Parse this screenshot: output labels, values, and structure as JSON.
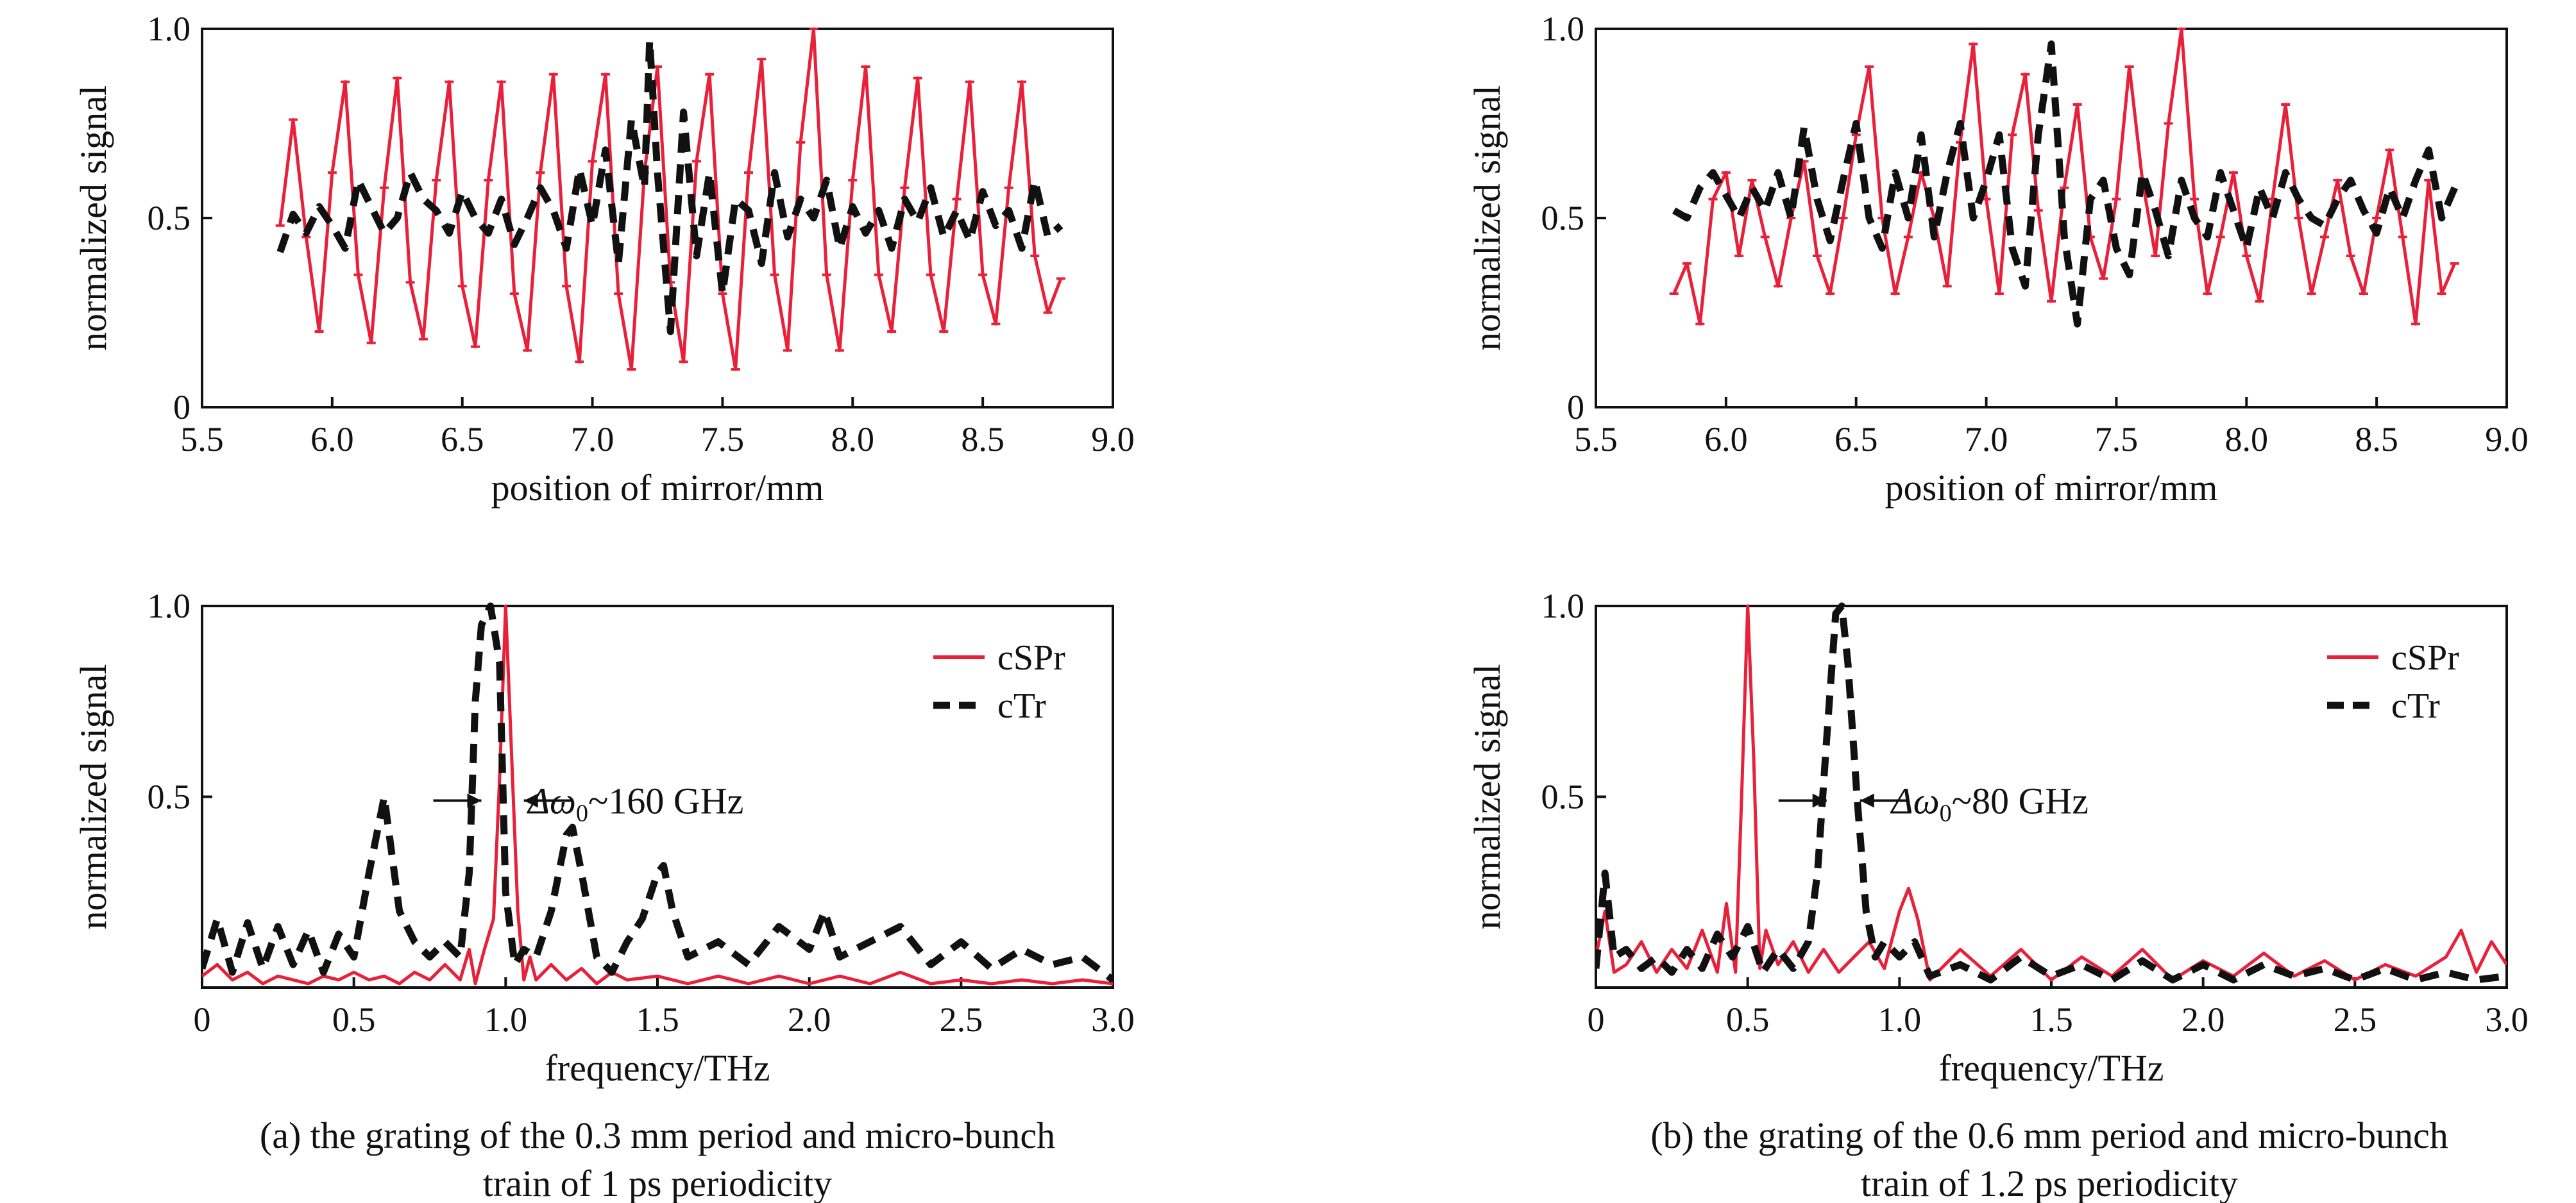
{
  "colors": {
    "cSPr": "#e8213a",
    "cTr": "#111111"
  },
  "chart_data": [
    {
      "id": "a_top",
      "type": "line",
      "xlabel": "position of mirror/mm",
      "ylabel": "normalized signal",
      "xlim": [
        5.5,
        9.0
      ],
      "ylim": [
        0,
        1.0
      ],
      "xticks": [
        "5.5",
        "6.0",
        "6.5",
        "7.0",
        "7.5",
        "8.0",
        "8.5",
        "9.0"
      ],
      "yticks": [
        "0",
        "0.5",
        "1.0"
      ],
      "series": [
        {
          "key": "cSPr",
          "style": "solid-markers",
          "x": [
            5.8,
            5.85,
            5.9,
            5.95,
            6.0,
            6.05,
            6.1,
            6.15,
            6.2,
            6.25,
            6.3,
            6.35,
            6.4,
            6.45,
            6.5,
            6.55,
            6.6,
            6.65,
            6.7,
            6.75,
            6.8,
            6.85,
            6.9,
            6.95,
            7.0,
            7.05,
            7.1,
            7.15,
            7.2,
            7.25,
            7.3,
            7.35,
            7.4,
            7.45,
            7.5,
            7.55,
            7.6,
            7.65,
            7.7,
            7.75,
            7.8,
            7.85,
            7.9,
            7.95,
            8.0,
            8.05,
            8.1,
            8.15,
            8.2,
            8.25,
            8.3,
            8.35,
            8.4,
            8.45,
            8.5,
            8.55,
            8.6,
            8.65,
            8.7,
            8.75,
            8.8
          ],
          "y": [
            0.48,
            0.76,
            0.45,
            0.2,
            0.62,
            0.86,
            0.35,
            0.17,
            0.58,
            0.87,
            0.33,
            0.18,
            0.6,
            0.86,
            0.32,
            0.16,
            0.6,
            0.86,
            0.3,
            0.15,
            0.62,
            0.88,
            0.32,
            0.12,
            0.65,
            0.88,
            0.3,
            0.1,
            0.62,
            0.9,
            0.33,
            0.12,
            0.65,
            0.88,
            0.3,
            0.1,
            0.62,
            0.92,
            0.35,
            0.15,
            0.7,
            1.0,
            0.35,
            0.15,
            0.6,
            0.9,
            0.35,
            0.2,
            0.58,
            0.87,
            0.35,
            0.2,
            0.55,
            0.86,
            0.35,
            0.22,
            0.58,
            0.86,
            0.4,
            0.25,
            0.34
          ]
        },
        {
          "key": "cTr",
          "style": "dashed",
          "x": [
            5.8,
            5.85,
            5.9,
            5.95,
            6.0,
            6.05,
            6.1,
            6.15,
            6.2,
            6.25,
            6.3,
            6.35,
            6.4,
            6.45,
            6.5,
            6.55,
            6.6,
            6.65,
            6.7,
            6.75,
            6.8,
            6.85,
            6.9,
            6.95,
            7.0,
            7.05,
            7.1,
            7.15,
            7.2,
            7.22,
            7.25,
            7.3,
            7.35,
            7.4,
            7.45,
            7.5,
            7.55,
            7.6,
            7.65,
            7.7,
            7.75,
            7.8,
            7.85,
            7.9,
            7.95,
            8.0,
            8.05,
            8.1,
            8.15,
            8.2,
            8.25,
            8.3,
            8.35,
            8.4,
            8.45,
            8.5,
            8.55,
            8.6,
            8.65,
            8.7,
            8.75,
            8.8
          ],
          "y": [
            0.41,
            0.51,
            0.46,
            0.53,
            0.48,
            0.42,
            0.6,
            0.53,
            0.46,
            0.5,
            0.62,
            0.55,
            0.52,
            0.46,
            0.57,
            0.5,
            0.46,
            0.55,
            0.43,
            0.5,
            0.58,
            0.52,
            0.42,
            0.63,
            0.48,
            0.68,
            0.38,
            0.76,
            0.58,
            0.97,
            0.62,
            0.2,
            0.78,
            0.4,
            0.62,
            0.3,
            0.55,
            0.52,
            0.38,
            0.62,
            0.45,
            0.55,
            0.5,
            0.6,
            0.42,
            0.53,
            0.46,
            0.52,
            0.42,
            0.55,
            0.49,
            0.58,
            0.45,
            0.52,
            0.44,
            0.57,
            0.48,
            0.52,
            0.42,
            0.6,
            0.45,
            0.48
          ]
        }
      ]
    },
    {
      "id": "b_top",
      "type": "line",
      "xlabel": "position of mirror/mm",
      "ylabel": "normalized signal",
      "xlim": [
        5.5,
        9.0
      ],
      "ylim": [
        0,
        1.0
      ],
      "xticks": [
        "5.5",
        "6.0",
        "6.5",
        "7.0",
        "7.5",
        "8.0",
        "8.5",
        "9.0"
      ],
      "yticks": [
        "0",
        "0.5",
        "1.0"
      ],
      "series": [
        {
          "key": "cSPr",
          "style": "solid-markers",
          "x": [
            5.8,
            5.85,
            5.9,
            5.95,
            6.0,
            6.05,
            6.1,
            6.15,
            6.2,
            6.25,
            6.3,
            6.35,
            6.4,
            6.45,
            6.5,
            6.55,
            6.6,
            6.65,
            6.7,
            6.75,
            6.8,
            6.85,
            6.9,
            6.95,
            7.0,
            7.05,
            7.1,
            7.15,
            7.2,
            7.25,
            7.3,
            7.35,
            7.4,
            7.45,
            7.5,
            7.55,
            7.6,
            7.65,
            7.7,
            7.75,
            7.8,
            7.85,
            7.9,
            7.95,
            8.0,
            8.05,
            8.1,
            8.15,
            8.2,
            8.25,
            8.3,
            8.35,
            8.4,
            8.45,
            8.5,
            8.55,
            8.6,
            8.65,
            8.7,
            8.75,
            8.8
          ],
          "y": [
            0.3,
            0.38,
            0.22,
            0.55,
            0.62,
            0.4,
            0.6,
            0.45,
            0.32,
            0.5,
            0.65,
            0.4,
            0.3,
            0.5,
            0.72,
            0.9,
            0.5,
            0.3,
            0.45,
            0.62,
            0.5,
            0.32,
            0.7,
            0.96,
            0.55,
            0.3,
            0.72,
            0.88,
            0.52,
            0.28,
            0.58,
            0.8,
            0.45,
            0.34,
            0.55,
            0.9,
            0.6,
            0.4,
            0.75,
            1.0,
            0.55,
            0.3,
            0.45,
            0.62,
            0.4,
            0.28,
            0.55,
            0.8,
            0.5,
            0.3,
            0.45,
            0.6,
            0.4,
            0.3,
            0.5,
            0.68,
            0.45,
            0.22,
            0.6,
            0.3,
            0.38
          ]
        },
        {
          "key": "cTr",
          "style": "dashed",
          "x": [
            5.8,
            5.85,
            5.9,
            5.95,
            6.0,
            6.05,
            6.1,
            6.15,
            6.2,
            6.25,
            6.3,
            6.35,
            6.4,
            6.45,
            6.5,
            6.55,
            6.6,
            6.65,
            6.7,
            6.75,
            6.8,
            6.85,
            6.9,
            6.95,
            7.0,
            7.05,
            7.1,
            7.15,
            7.2,
            7.25,
            7.3,
            7.35,
            7.4,
            7.45,
            7.5,
            7.55,
            7.6,
            7.65,
            7.7,
            7.75,
            7.8,
            7.85,
            7.9,
            7.95,
            8.0,
            8.05,
            8.1,
            8.15,
            8.2,
            8.25,
            8.3,
            8.35,
            8.4,
            8.45,
            8.5,
            8.55,
            8.6,
            8.65,
            8.7,
            8.75,
            8.8
          ],
          "y": [
            0.52,
            0.5,
            0.58,
            0.62,
            0.56,
            0.5,
            0.58,
            0.52,
            0.62,
            0.5,
            0.74,
            0.55,
            0.44,
            0.6,
            0.75,
            0.5,
            0.42,
            0.62,
            0.5,
            0.72,
            0.45,
            0.62,
            0.75,
            0.5,
            0.6,
            0.72,
            0.42,
            0.32,
            0.72,
            0.96,
            0.45,
            0.22,
            0.55,
            0.6,
            0.42,
            0.35,
            0.62,
            0.52,
            0.4,
            0.6,
            0.5,
            0.45,
            0.62,
            0.52,
            0.42,
            0.58,
            0.5,
            0.62,
            0.55,
            0.5,
            0.48,
            0.55,
            0.6,
            0.52,
            0.46,
            0.58,
            0.5,
            0.6,
            0.68,
            0.5,
            0.58
          ]
        }
      ]
    },
    {
      "id": "a_bottom",
      "type": "line",
      "xlabel": "frequency/THz",
      "ylabel": "normalized signal",
      "xlim": [
        0,
        3.0
      ],
      "ylim": [
        0,
        1.0
      ],
      "xticks": [
        "0",
        "0.5",
        "1.0",
        "1.5",
        "2.0",
        "2.5",
        "3.0"
      ],
      "yticks": [
        "0.5",
        "1.0"
      ],
      "legend": {
        "position": "top-right",
        "entries": [
          {
            "key": "cSPr",
            "label": "cSPr"
          },
          {
            "key": "cTr",
            "label": "cTr"
          }
        ]
      },
      "annotation": {
        "text_prefix": "Δω",
        "subscript": "0",
        "text_suffix": "~160 GHz",
        "left_x": 0.92,
        "right_x": 1.06,
        "y": 0.49,
        "text_x": 1.2
      },
      "series": [
        {
          "key": "cSPr",
          "style": "solid",
          "x": [
            0,
            0.05,
            0.1,
            0.15,
            0.2,
            0.25,
            0.3,
            0.35,
            0.4,
            0.45,
            0.5,
            0.55,
            0.6,
            0.65,
            0.7,
            0.75,
            0.8,
            0.85,
            0.88,
            0.9,
            0.93,
            0.96,
            0.98,
            1.0,
            1.02,
            1.04,
            1.06,
            1.08,
            1.1,
            1.15,
            1.2,
            1.25,
            1.3,
            1.35,
            1.4,
            1.5,
            1.6,
            1.7,
            1.8,
            1.9,
            2.0,
            2.1,
            2.2,
            2.3,
            2.4,
            2.5,
            2.6,
            2.7,
            2.8,
            2.9,
            3.0
          ],
          "y": [
            0.03,
            0.06,
            0.02,
            0.04,
            0.01,
            0.03,
            0.02,
            0.01,
            0.03,
            0.02,
            0.04,
            0.02,
            0.03,
            0.01,
            0.04,
            0.02,
            0.06,
            0.02,
            0.1,
            0.01,
            0.1,
            0.18,
            0.55,
            1.0,
            0.6,
            0.2,
            0.02,
            0.08,
            0.02,
            0.06,
            0.02,
            0.05,
            0.01,
            0.04,
            0.02,
            0.03,
            0.01,
            0.03,
            0.01,
            0.03,
            0.01,
            0.03,
            0.01,
            0.04,
            0.01,
            0.02,
            0.01,
            0.02,
            0.01,
            0.02,
            0.01
          ]
        },
        {
          "key": "cTr",
          "style": "dashed",
          "x": [
            0,
            0.05,
            0.1,
            0.15,
            0.2,
            0.25,
            0.3,
            0.35,
            0.4,
            0.45,
            0.5,
            0.55,
            0.6,
            0.65,
            0.7,
            0.75,
            0.8,
            0.85,
            0.88,
            0.9,
            0.92,
            0.95,
            0.98,
            1.0,
            1.03,
            1.06,
            1.1,
            1.15,
            1.2,
            1.22,
            1.25,
            1.3,
            1.35,
            1.4,
            1.45,
            1.5,
            1.52,
            1.55,
            1.6,
            1.7,
            1.8,
            1.9,
            2.0,
            2.05,
            2.1,
            2.2,
            2.3,
            2.4,
            2.5,
            2.6,
            2.7,
            2.8,
            2.9,
            3.0
          ],
          "y": [
            0.05,
            0.18,
            0.04,
            0.17,
            0.05,
            0.16,
            0.06,
            0.15,
            0.04,
            0.14,
            0.08,
            0.3,
            0.5,
            0.2,
            0.12,
            0.08,
            0.12,
            0.08,
            0.3,
            0.75,
            0.95,
            1.0,
            0.85,
            0.25,
            0.06,
            0.1,
            0.08,
            0.2,
            0.4,
            0.42,
            0.3,
            0.08,
            0.04,
            0.12,
            0.18,
            0.3,
            0.32,
            0.2,
            0.08,
            0.12,
            0.06,
            0.16,
            0.1,
            0.2,
            0.08,
            0.12,
            0.16,
            0.06,
            0.12,
            0.05,
            0.1,
            0.06,
            0.08,
            0.02
          ]
        }
      ]
    },
    {
      "id": "b_bottom",
      "type": "line",
      "xlabel": "frequency/THz",
      "ylabel": "normalized signal",
      "xlim": [
        0,
        3.0
      ],
      "ylim": [
        0,
        1.0
      ],
      "xticks": [
        "0",
        "0.5",
        "1.0",
        "1.5",
        "2.0",
        "2.5",
        "3.0"
      ],
      "yticks": [
        "0.5",
        "1.0"
      ],
      "legend": {
        "position": "top-right",
        "entries": [
          {
            "key": "cSPr",
            "label": "cSPr"
          },
          {
            "key": "cTr",
            "label": "cTr"
          }
        ]
      },
      "annotation": {
        "text_prefix": "Δω",
        "subscript": "0",
        "text_suffix": "~80 GHz",
        "left_x": 0.76,
        "right_x": 0.87,
        "y": 0.49,
        "text_x": 1.1
      },
      "series": [
        {
          "key": "cSPr",
          "style": "solid",
          "x": [
            0,
            0.03,
            0.06,
            0.1,
            0.15,
            0.2,
            0.25,
            0.3,
            0.35,
            0.4,
            0.43,
            0.46,
            0.48,
            0.5,
            0.52,
            0.54,
            0.56,
            0.6,
            0.65,
            0.7,
            0.75,
            0.8,
            0.85,
            0.9,
            0.95,
            1.0,
            1.03,
            1.06,
            1.1,
            1.2,
            1.3,
            1.4,
            1.5,
            1.6,
            1.7,
            1.8,
            1.9,
            2.0,
            2.1,
            2.2,
            2.3,
            2.4,
            2.5,
            2.6,
            2.7,
            2.8,
            2.85,
            2.9,
            2.95,
            3.0
          ],
          "y": [
            0.08,
            0.2,
            0.04,
            0.06,
            0.12,
            0.04,
            0.1,
            0.05,
            0.15,
            0.04,
            0.22,
            0.04,
            0.5,
            1.0,
            0.6,
            0.05,
            0.15,
            0.06,
            0.12,
            0.04,
            0.1,
            0.04,
            0.08,
            0.12,
            0.05,
            0.2,
            0.26,
            0.18,
            0.02,
            0.1,
            0.03,
            0.1,
            0.02,
            0.08,
            0.03,
            0.1,
            0.02,
            0.07,
            0.03,
            0.09,
            0.03,
            0.07,
            0.02,
            0.06,
            0.03,
            0.08,
            0.15,
            0.04,
            0.12,
            0.06
          ]
        },
        {
          "key": "cTr",
          "style": "dashed",
          "x": [
            0,
            0.03,
            0.06,
            0.1,
            0.15,
            0.2,
            0.25,
            0.3,
            0.35,
            0.4,
            0.45,
            0.5,
            0.55,
            0.6,
            0.65,
            0.7,
            0.73,
            0.76,
            0.79,
            0.81,
            0.83,
            0.86,
            0.89,
            0.92,
            0.95,
            1.0,
            1.05,
            1.1,
            1.2,
            1.3,
            1.4,
            1.5,
            1.6,
            1.7,
            1.8,
            1.9,
            2.0,
            2.1,
            2.2,
            2.3,
            2.4,
            2.5,
            2.6,
            2.7,
            2.8,
            2.9,
            3.0
          ],
          "y": [
            0.05,
            0.3,
            0.08,
            0.1,
            0.05,
            0.08,
            0.04,
            0.1,
            0.05,
            0.14,
            0.08,
            0.16,
            0.04,
            0.1,
            0.05,
            0.12,
            0.3,
            0.65,
            0.98,
            1.0,
            0.85,
            0.5,
            0.2,
            0.08,
            0.12,
            0.08,
            0.12,
            0.03,
            0.06,
            0.02,
            0.08,
            0.03,
            0.06,
            0.02,
            0.07,
            0.02,
            0.06,
            0.02,
            0.06,
            0.03,
            0.05,
            0.02,
            0.05,
            0.02,
            0.04,
            0.02,
            0.03
          ]
        }
      ]
    }
  ],
  "captions": {
    "a_line1": "(a) the grating of the 0.3 mm period and micro-bunch",
    "a_line2": "train of 1 ps periodicity",
    "b_line1": "(b) the grating of the 0.6 mm period and micro-bunch",
    "b_line2": "train of 1.2 ps periodicity"
  }
}
